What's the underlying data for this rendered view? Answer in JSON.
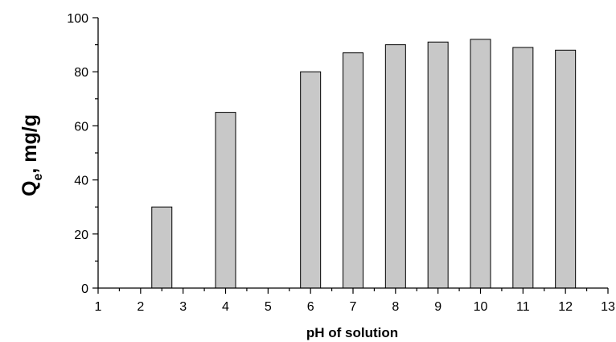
{
  "chart_data": {
    "type": "bar",
    "x": [
      2.5,
      4,
      6,
      7,
      8,
      9,
      10,
      11,
      12
    ],
    "values": [
      30,
      65,
      80,
      87,
      90,
      91,
      92,
      89,
      88
    ],
    "xlabel": "pH of solution",
    "ylabel": {
      "main": "Q",
      "sub": "e",
      "rest": ", mg/g"
    },
    "xlim": [
      1,
      13
    ],
    "ylim": [
      0,
      100
    ],
    "x_ticks": [
      1,
      2,
      3,
      4,
      5,
      6,
      7,
      8,
      9,
      10,
      11,
      12,
      13
    ],
    "y_ticks": [
      0,
      20,
      40,
      60,
      80,
      100
    ],
    "grid": false,
    "bar_color": "#c8c8c8",
    "bar_edge_color": "#000000"
  }
}
